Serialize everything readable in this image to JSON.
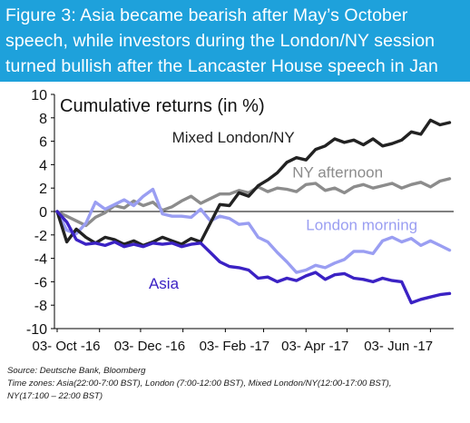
{
  "figure": {
    "title_lines": [
      "Figure 3:  Asia became bearish after May’s October",
      "speech, while investors during the London/NY session",
      "turned bullish after the Lancaster House speech in Jan"
    ]
  },
  "chart_data": {
    "type": "line",
    "title": "Cumulative returns (in %)",
    "xlabel": "",
    "ylabel": "",
    "x_ticks": [
      "03- Oct -16",
      "03- Dec -16",
      "03- Feb -17",
      "03- Apr -17",
      "03- Jun -17"
    ],
    "ylim": [
      -10,
      10
    ],
    "y_ticks": [
      10,
      8,
      6,
      4,
      2,
      0,
      -2,
      -4,
      -6,
      -8,
      -10
    ],
    "grid": false,
    "legend": "inline labels",
    "series": [
      {
        "name": "Mixed London/NY",
        "color": "#222222",
        "x": [
          "2016-10-03",
          "2016-10-10",
          "2016-10-17",
          "2016-10-24",
          "2016-10-31",
          "2016-11-07",
          "2016-11-14",
          "2016-11-21",
          "2016-11-28",
          "2016-12-05",
          "2016-12-12",
          "2016-12-19",
          "2016-12-26",
          "2017-01-02",
          "2017-01-09",
          "2017-01-16",
          "2017-01-23",
          "2017-01-30",
          "2017-02-06",
          "2017-02-13",
          "2017-02-20",
          "2017-02-27",
          "2017-03-06",
          "2017-03-13",
          "2017-03-20",
          "2017-03-27",
          "2017-04-03",
          "2017-04-10",
          "2017-04-17",
          "2017-04-24",
          "2017-05-01",
          "2017-05-08",
          "2017-05-15",
          "2017-05-22",
          "2017-05-29",
          "2017-06-05",
          "2017-06-12",
          "2017-06-19",
          "2017-06-26",
          "2017-07-03",
          "2017-07-10",
          "2017-07-17"
        ],
        "y": [
          0,
          -2.6,
          -1.5,
          -2.2,
          -2.7,
          -2.2,
          -2.4,
          -2.8,
          -2.5,
          -2.9,
          -2.6,
          -2.2,
          -2.5,
          -2.8,
          -2.3,
          -2.6,
          -1,
          0.6,
          0.5,
          1.6,
          1.3,
          2.2,
          2.7,
          3.3,
          4.2,
          4.6,
          4.4,
          5.3,
          5.6,
          6.2,
          5.9,
          6.1,
          5.7,
          6.2,
          5.6,
          5.8,
          6.1,
          6.8,
          6.6,
          7.8,
          7.4,
          7.6
        ]
      },
      {
        "name": "NY afternoon",
        "color": "#8c8c8c",
        "x": [
          "2016-10-03",
          "2016-10-10",
          "2016-10-17",
          "2016-10-24",
          "2016-10-31",
          "2016-11-07",
          "2016-11-14",
          "2016-11-21",
          "2016-11-28",
          "2016-12-05",
          "2016-12-12",
          "2016-12-19",
          "2016-12-26",
          "2017-01-02",
          "2017-01-09",
          "2017-01-16",
          "2017-01-23",
          "2017-01-30",
          "2017-02-06",
          "2017-02-13",
          "2017-02-20",
          "2017-02-27",
          "2017-03-06",
          "2017-03-13",
          "2017-03-20",
          "2017-03-27",
          "2017-04-03",
          "2017-04-10",
          "2017-04-17",
          "2017-04-24",
          "2017-05-01",
          "2017-05-08",
          "2017-05-15",
          "2017-05-22",
          "2017-05-29",
          "2017-06-05",
          "2017-06-12",
          "2017-06-19",
          "2017-06-26",
          "2017-07-03",
          "2017-07-10",
          "2017-07-17"
        ],
        "y": [
          0,
          -0.4,
          -0.8,
          -1.2,
          -0.5,
          -0.1,
          0.5,
          0.3,
          0.9,
          0.5,
          0.8,
          0.1,
          0.4,
          0.9,
          1.3,
          0.7,
          1.1,
          1.5,
          1.5,
          1.8,
          1.6,
          2.1,
          1.7,
          2.0,
          1.9,
          1.7,
          2.3,
          2.4,
          1.8,
          2.0,
          1.6,
          2.1,
          2.3,
          2.0,
          2.2,
          2.4,
          2.0,
          2.3,
          2.5,
          2.1,
          2.6,
          2.8
        ]
      },
      {
        "name": "London morning",
        "color": "#9a9ef2",
        "x": [
          "2016-10-03",
          "2016-10-10",
          "2016-10-17",
          "2016-10-24",
          "2016-10-31",
          "2016-11-07",
          "2016-11-14",
          "2016-11-21",
          "2016-11-28",
          "2016-12-05",
          "2016-12-12",
          "2016-12-19",
          "2016-12-26",
          "2017-01-02",
          "2017-01-09",
          "2017-01-16",
          "2017-01-23",
          "2017-01-30",
          "2017-02-06",
          "2017-02-13",
          "2017-02-20",
          "2017-02-27",
          "2017-03-06",
          "2017-03-13",
          "2017-03-20",
          "2017-03-27",
          "2017-04-03",
          "2017-04-10",
          "2017-04-17",
          "2017-04-24",
          "2017-05-01",
          "2017-05-08",
          "2017-05-15",
          "2017-05-22",
          "2017-05-29",
          "2017-06-05",
          "2017-06-12",
          "2017-06-19",
          "2017-06-26",
          "2017-07-03",
          "2017-07-10",
          "2017-07-17"
        ],
        "y": [
          0,
          -1.6,
          -1.9,
          -1.0,
          0.8,
          0.2,
          0.6,
          1.0,
          0.5,
          1.3,
          1.9,
          -0.2,
          -0.4,
          -0.4,
          -0.5,
          0.2,
          -0.8,
          -0.4,
          -0.6,
          -1.1,
          -1.0,
          -2.2,
          -2.6,
          -3.5,
          -4.3,
          -5.2,
          -5.0,
          -4.6,
          -4.8,
          -4.4,
          -4.1,
          -3.4,
          -3.4,
          -3.6,
          -2.5,
          -2.2,
          -2.6,
          -2.3,
          -2.9,
          -2.5,
          -2.9,
          -3.3
        ]
      },
      {
        "name": "Asia",
        "color": "#3b22c4",
        "x": [
          "2016-10-03",
          "2016-10-10",
          "2016-10-17",
          "2016-10-24",
          "2016-10-31",
          "2016-11-07",
          "2016-11-14",
          "2016-11-21",
          "2016-11-28",
          "2016-12-05",
          "2016-12-12",
          "2016-12-19",
          "2016-12-26",
          "2017-01-02",
          "2017-01-09",
          "2017-01-16",
          "2017-01-23",
          "2017-01-30",
          "2017-02-06",
          "2017-02-13",
          "2017-02-20",
          "2017-02-27",
          "2017-03-06",
          "2017-03-13",
          "2017-03-20",
          "2017-03-27",
          "2017-04-03",
          "2017-04-10",
          "2017-04-17",
          "2017-04-24",
          "2017-05-01",
          "2017-05-08",
          "2017-05-15",
          "2017-05-22",
          "2017-05-29",
          "2017-06-05",
          "2017-06-12",
          "2017-06-19",
          "2017-06-26",
          "2017-07-03",
          "2017-07-10",
          "2017-07-17"
        ],
        "y": [
          0,
          -0.9,
          -2.4,
          -2.8,
          -2.7,
          -2.9,
          -2.6,
          -3.0,
          -2.8,
          -3.0,
          -2.7,
          -2.8,
          -2.7,
          -3.0,
          -2.8,
          -2.7,
          -3.5,
          -4.3,
          -4.7,
          -4.8,
          -5.0,
          -5.7,
          -5.6,
          -6.0,
          -5.7,
          -5.9,
          -5.5,
          -5.2,
          -5.8,
          -5.4,
          -5.3,
          -5.7,
          -5.8,
          -6.0,
          -5.7,
          -5.9,
          -6.0,
          -7.8,
          -7.5,
          -7.3,
          -7.1,
          -7.0
        ]
      }
    ]
  },
  "footer": {
    "source": "Source: Deutsche Bank, Bloomberg",
    "timezones_line1": "Time zones: Asia(22:00-7:00 BST), London (7:00-12:00 BST), Mixed London/NY(12:00-17:00 BST),",
    "timezones_line2": "NY(17:100 – 22:00 BST)"
  }
}
